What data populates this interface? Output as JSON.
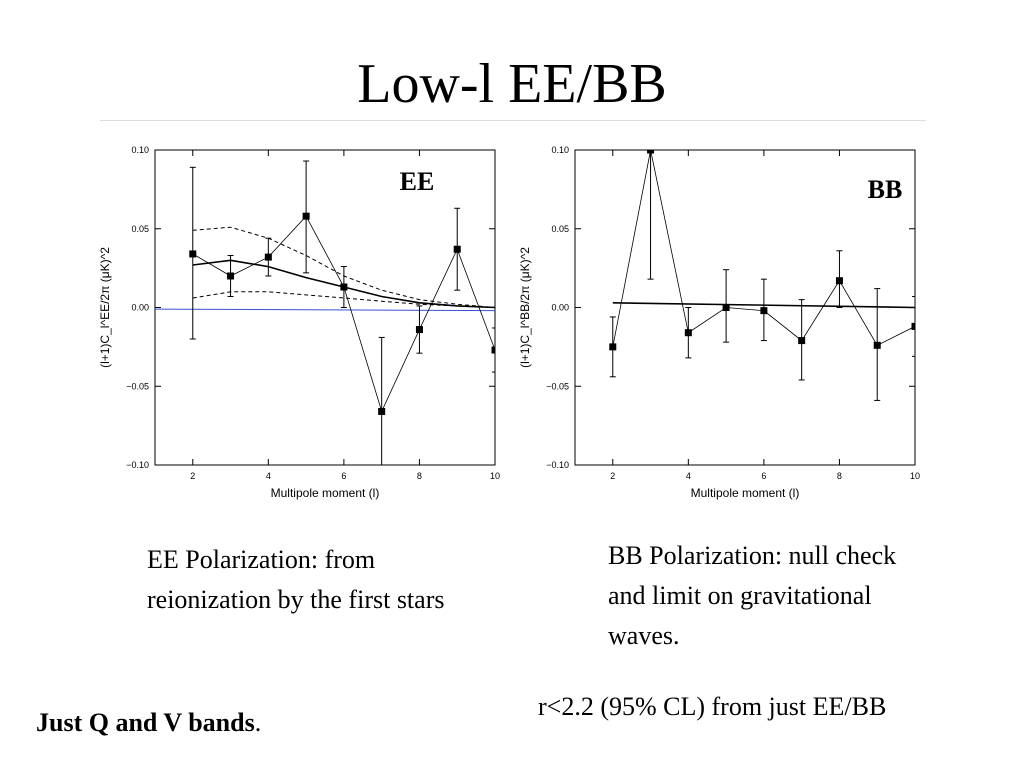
{
  "slide": {
    "title": "Low-l EE/BB",
    "caption_ee": "EE Polarization: from reionization by the first stars",
    "caption_bb": "BB Polarization: null check and limit on gravitational waves.",
    "footer_left_bold": "Just Q and V bands",
    "footer_left_tail": ".",
    "footer_right": "r<2.2 (95% CL) from just EE/BB"
  },
  "chart_data": [
    {
      "id": "ee",
      "type": "scatter",
      "panel_label": "EE",
      "xlabel": "Multipole moment (l)",
      "ylabel": "(l+1)C_l^EE/2π (μK)^2",
      "xlim": [
        1,
        10
      ],
      "ylim": [
        -0.1,
        0.1
      ],
      "xticks": [
        "2",
        "4",
        "6",
        "8",
        "10"
      ],
      "yticks": [
        "0.10",
        "0.05",
        "0.00",
        "−0.05",
        "−0.10"
      ],
      "colors": {
        "points": "#000000",
        "zero_line": "#3a4fd6",
        "model": "#000000"
      },
      "series": [
        {
          "x": [
            2,
            3,
            4,
            5,
            6,
            7,
            8,
            9,
            10
          ],
          "y": [
            0.034,
            0.02,
            0.032,
            0.058,
            0.013,
            -0.066,
            -0.014,
            0.037,
            -0.027
          ],
          "err_low": [
            0.054,
            0.013,
            0.012,
            0.036,
            0.013,
            0.046,
            0.015,
            0.026,
            0.014
          ],
          "err_high": [
            0.055,
            0.013,
            0.012,
            0.035,
            0.013,
            0.047,
            0.015,
            0.026,
            0.014
          ]
        }
      ],
      "model_curves": [
        {
          "style": "solid",
          "x": [
            2,
            3,
            4,
            5,
            6,
            7,
            8,
            9,
            10
          ],
          "y": [
            0.027,
            0.03,
            0.026,
            0.019,
            0.013,
            0.007,
            0.003,
            0.001,
            0.0
          ]
        },
        {
          "style": "dashed",
          "x": [
            2,
            3,
            4,
            5,
            6,
            7,
            8,
            9,
            10
          ],
          "y": [
            0.049,
            0.051,
            0.044,
            0.033,
            0.02,
            0.011,
            0.005,
            0.002,
            0.0
          ]
        },
        {
          "style": "dashed",
          "x": [
            2,
            3,
            4,
            5,
            6,
            7,
            8,
            9,
            10
          ],
          "y": [
            0.006,
            0.01,
            0.01,
            0.008,
            0.006,
            0.004,
            0.002,
            0.001,
            0.0
          ]
        }
      ],
      "zero_line": [
        [
          1,
          -0.001
        ],
        [
          10,
          -0.002
        ]
      ]
    },
    {
      "id": "bb",
      "type": "scatter",
      "panel_label": "BB",
      "xlabel": "Multipole moment (l)",
      "ylabel": "(l+1)C_l^BB/2π (μK)^2",
      "xlim": [
        1,
        10
      ],
      "ylim": [
        -0.1,
        0.1
      ],
      "xticks": [
        "2",
        "4",
        "6",
        "8",
        "10"
      ],
      "yticks": [
        "0.10",
        "0.05",
        "0.00",
        "−0.05",
        "−0.10"
      ],
      "colors": {
        "points": "#000000",
        "model": "#000000"
      },
      "series": [
        {
          "x": [
            2,
            3,
            4,
            5,
            6,
            7,
            8,
            9,
            10
          ],
          "y": [
            -0.025,
            0.1,
            -0.016,
            0.0,
            -0.002,
            -0.021,
            0.017,
            -0.024,
            -0.012
          ],
          "err_low": [
            0.019,
            0.082,
            0.016,
            0.022,
            0.019,
            0.025,
            0.017,
            0.035,
            0.019
          ],
          "err_high": [
            0.019,
            0.0,
            0.016,
            0.024,
            0.02,
            0.026,
            0.019,
            0.036,
            0.019
          ]
        }
      ],
      "model_curves": [
        {
          "style": "solid",
          "x": [
            2,
            10
          ],
          "y": [
            0.003,
            0.0
          ]
        }
      ]
    }
  ]
}
